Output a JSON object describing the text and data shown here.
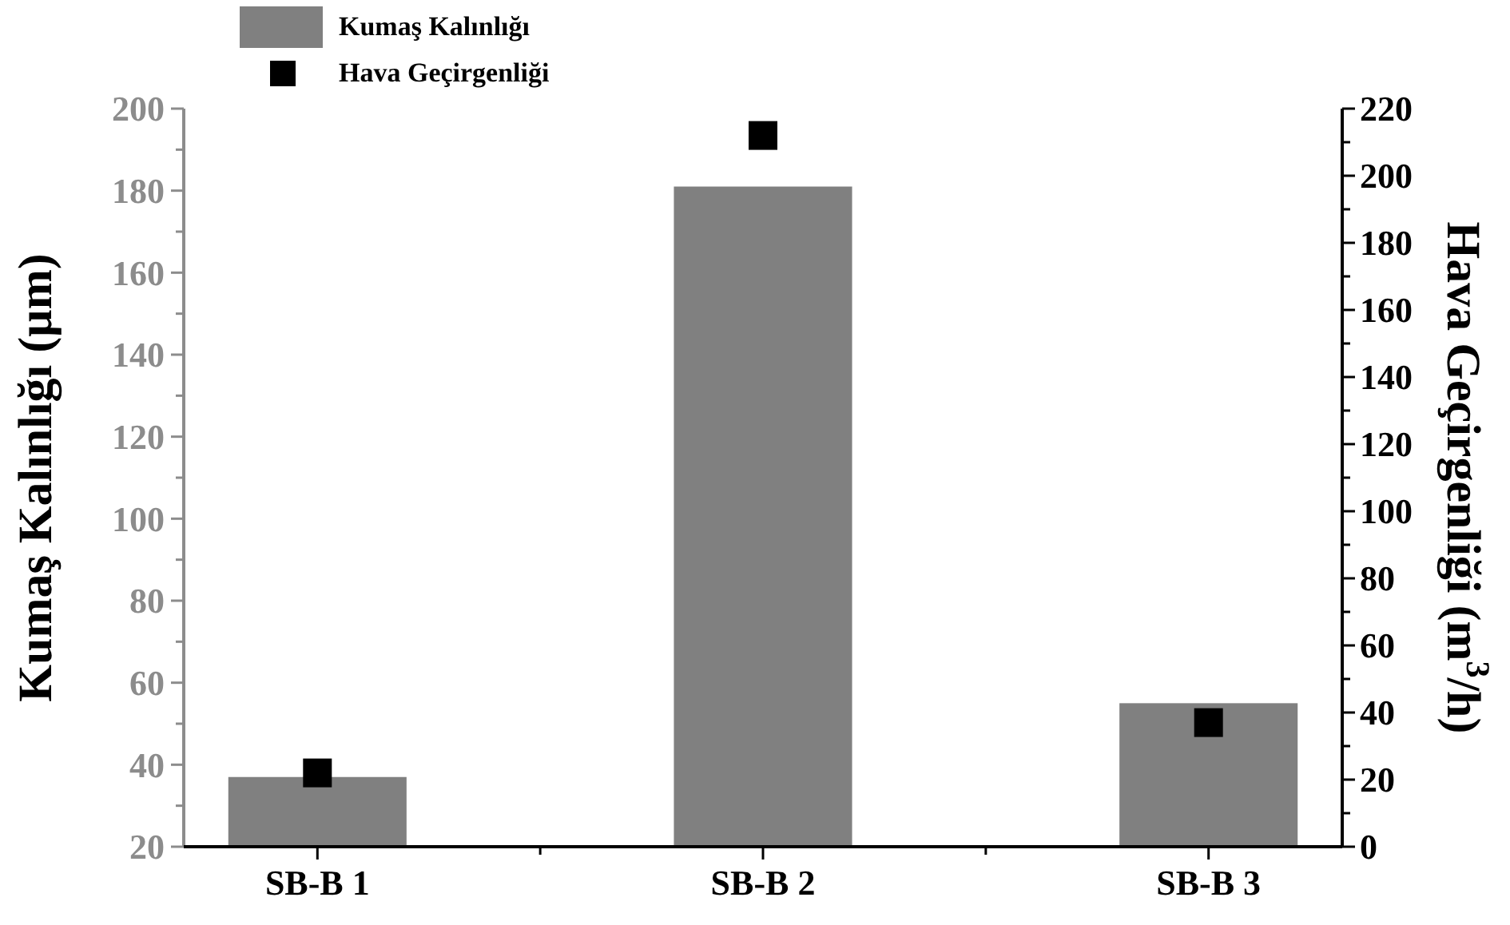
{
  "chart_data": {
    "type": "bar",
    "ylabel": "Kumaş Kalınlığı (µm)",
    "y2label": "Hava Geçirgenliği (m$^{3}$/h)",
    "categories": [
      "SB-B 1",
      "SB-B 2",
      "SB-B 3"
    ],
    "series": [
      {
        "name": "Kumaş Kalınlığı",
        "color": "#808080",
        "values": [
          37,
          181,
          55
        ]
      },
      {
        "name": "Hava Geçirgenliği",
        "type": "scatter",
        "axis": "y2",
        "color": "#000000",
        "marker": "square",
        "values": [
          22,
          212,
          37
        ]
      }
    ],
    "ylim": [
      20,
      200
    ],
    "yticks": [
      20,
      40,
      60,
      80,
      100,
      120,
      140,
      160,
      180,
      200
    ],
    "y2lim": [
      0,
      220
    ],
    "y2ticks": [
      0,
      20,
      40,
      60,
      80,
      100,
      120,
      140,
      160,
      180,
      200,
      220
    ],
    "legend": "top left",
    "grid": false
  }
}
